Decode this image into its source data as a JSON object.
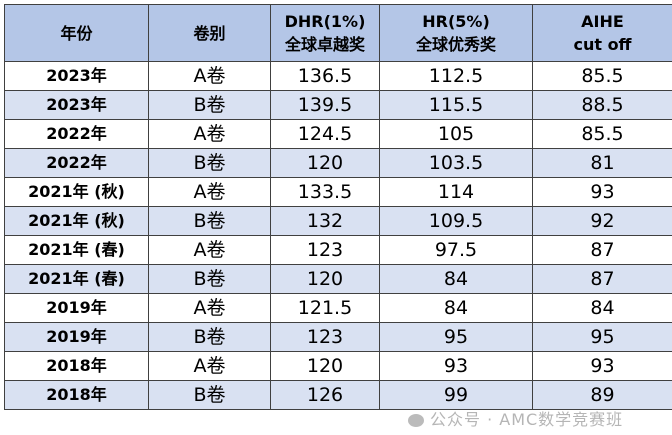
{
  "headers": [
    {
      "line1": "年份",
      "line2": ""
    },
    {
      "line1": "卷别",
      "line2": ""
    },
    {
      "line1": "DHR(1%)",
      "line2": "全球卓越奖"
    },
    {
      "line1": "HR(5%)",
      "line2": "全球优秀奖"
    },
    {
      "line1": "AIHE",
      "line2": "cut off"
    }
  ],
  "rows": [
    [
      "2023年",
      "A卷",
      "136.5",
      "112.5",
      "85.5"
    ],
    [
      "2023年",
      "B卷",
      "139.5",
      "115.5",
      "88.5"
    ],
    [
      "2022年",
      "A卷",
      "124.5",
      "105",
      "85.5"
    ],
    [
      "2022年",
      "B卷",
      "120",
      "103.5",
      "81"
    ],
    [
      "2021年 (秋)",
      "A卷",
      "133.5",
      "114",
      "93"
    ],
    [
      "2021年 (秋)",
      "B卷",
      "132",
      "109.5",
      "92"
    ],
    [
      "2021年 (春)",
      "A卷",
      "123",
      "97.5",
      "87"
    ],
    [
      "2021年 (春)",
      "B卷",
      "120",
      "84",
      "87"
    ],
    [
      "2019年",
      "A卷",
      "121.5",
      "84",
      "84"
    ],
    [
      "2019年",
      "B卷",
      "123",
      "95",
      "95"
    ],
    [
      "2018年",
      "A卷",
      "120",
      "93",
      "93"
    ],
    [
      "2018年",
      "B卷",
      "126",
      "99",
      "89"
    ]
  ],
  "watermark": "公众号 · AMC数学竞赛班",
  "colors": {
    "header": "#b4c6e7",
    "alt_row": "#d9e1f2"
  }
}
